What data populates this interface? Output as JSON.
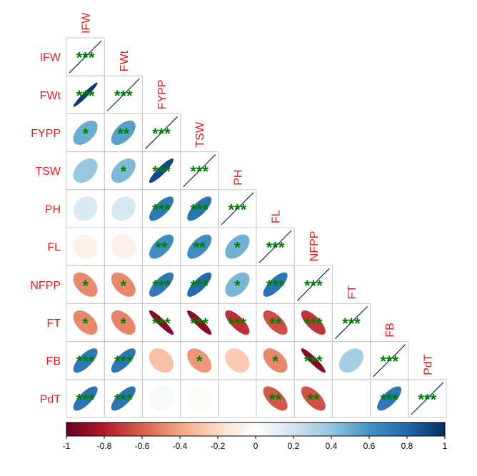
{
  "chart_data": {
    "type": "heatmap",
    "variables": [
      "IFW",
      "FWt",
      "FYPP",
      "TSW",
      "PH",
      "FL",
      "NFPP",
      "FT",
      "FB",
      "PdT"
    ],
    "cells": [
      {
        "row": "IFW",
        "col": "IFW",
        "value": 1.0,
        "sig": "***"
      },
      {
        "row": "FWt",
        "col": "IFW",
        "value": 0.96,
        "sig": "***"
      },
      {
        "row": "FWt",
        "col": "FWt",
        "value": 1.0,
        "sig": "***"
      },
      {
        "row": "FYPP",
        "col": "IFW",
        "value": 0.5,
        "sig": "*"
      },
      {
        "row": "FYPP",
        "col": "FWt",
        "value": 0.55,
        "sig": "**"
      },
      {
        "row": "FYPP",
        "col": "FYPP",
        "value": 1.0,
        "sig": "***"
      },
      {
        "row": "TSW",
        "col": "IFW",
        "value": 0.38,
        "sig": ""
      },
      {
        "row": "TSW",
        "col": "FWt",
        "value": 0.45,
        "sig": "*"
      },
      {
        "row": "TSW",
        "col": "FYPP",
        "value": 0.9,
        "sig": "***"
      },
      {
        "row": "TSW",
        "col": "TSW",
        "value": 1.0,
        "sig": "***"
      },
      {
        "row": "PH",
        "col": "IFW",
        "value": 0.16,
        "sig": ""
      },
      {
        "row": "PH",
        "col": "FWt",
        "value": 0.18,
        "sig": ""
      },
      {
        "row": "PH",
        "col": "FYPP",
        "value": 0.72,
        "sig": "***"
      },
      {
        "row": "PH",
        "col": "TSW",
        "value": 0.74,
        "sig": "***"
      },
      {
        "row": "PH",
        "col": "PH",
        "value": 1.0,
        "sig": "***"
      },
      {
        "row": "FL",
        "col": "IFW",
        "value": -0.08,
        "sig": ""
      },
      {
        "row": "FL",
        "col": "FWt",
        "value": -0.08,
        "sig": ""
      },
      {
        "row": "FL",
        "col": "FYPP",
        "value": 0.62,
        "sig": "**"
      },
      {
        "row": "FL",
        "col": "TSW",
        "value": 0.62,
        "sig": "**"
      },
      {
        "row": "FL",
        "col": "PH",
        "value": 0.48,
        "sig": "*"
      },
      {
        "row": "FL",
        "col": "FL",
        "value": 1.0,
        "sig": "***"
      },
      {
        "row": "NFPP",
        "col": "IFW",
        "value": -0.48,
        "sig": "*"
      },
      {
        "row": "NFPP",
        "col": "FWt",
        "value": -0.48,
        "sig": "*"
      },
      {
        "row": "NFPP",
        "col": "FYPP",
        "value": 0.72,
        "sig": "***"
      },
      {
        "row": "NFPP",
        "col": "TSW",
        "value": 0.78,
        "sig": "***"
      },
      {
        "row": "NFPP",
        "col": "PH",
        "value": 0.46,
        "sig": "*"
      },
      {
        "row": "NFPP",
        "col": "FL",
        "value": 0.74,
        "sig": "***"
      },
      {
        "row": "NFPP",
        "col": "NFPP",
        "value": 1.0,
        "sig": "***"
      },
      {
        "row": "FT",
        "col": "IFW",
        "value": -0.48,
        "sig": "*"
      },
      {
        "row": "FT",
        "col": "FWt",
        "value": -0.5,
        "sig": "*"
      },
      {
        "row": "FT",
        "col": "FYPP",
        "value": -0.92,
        "sig": "***"
      },
      {
        "row": "FT",
        "col": "TSW",
        "value": -0.9,
        "sig": "***"
      },
      {
        "row": "FT",
        "col": "PH",
        "value": -0.74,
        "sig": "***"
      },
      {
        "row": "FT",
        "col": "FL",
        "value": -0.65,
        "sig": "**"
      },
      {
        "row": "FT",
        "col": "NFPP",
        "value": -0.72,
        "sig": "***"
      },
      {
        "row": "FT",
        "col": "FT",
        "value": 1.0,
        "sig": "***"
      },
      {
        "row": "FB",
        "col": "IFW",
        "value": 0.72,
        "sig": "***"
      },
      {
        "row": "FB",
        "col": "FWt",
        "value": 0.73,
        "sig": "***"
      },
      {
        "row": "FB",
        "col": "FYPP",
        "value": -0.3,
        "sig": ""
      },
      {
        "row": "FB",
        "col": "TSW",
        "value": -0.44,
        "sig": "*"
      },
      {
        "row": "FB",
        "col": "PH",
        "value": -0.26,
        "sig": ""
      },
      {
        "row": "FB",
        "col": "FL",
        "value": -0.48,
        "sig": "*"
      },
      {
        "row": "FB",
        "col": "NFPP",
        "value": -0.92,
        "sig": "***"
      },
      {
        "row": "FB",
        "col": "FT",
        "value": 0.34,
        "sig": ""
      },
      {
        "row": "FB",
        "col": "FB",
        "value": 1.0,
        "sig": "***"
      },
      {
        "row": "PdT",
        "col": "IFW",
        "value": 0.74,
        "sig": "***"
      },
      {
        "row": "PdT",
        "col": "FWt",
        "value": 0.74,
        "sig": "***"
      },
      {
        "row": "PdT",
        "col": "FYPP",
        "value": 0.05,
        "sig": ""
      },
      {
        "row": "PdT",
        "col": "TSW",
        "value": -0.02,
        "sig": ""
      },
      {
        "row": "PdT",
        "col": "PH",
        "value": 0.0,
        "sig": ""
      },
      {
        "row": "PdT",
        "col": "FL",
        "value": -0.62,
        "sig": "**"
      },
      {
        "row": "PdT",
        "col": "NFPP",
        "value": -0.64,
        "sig": "**"
      },
      {
        "row": "PdT",
        "col": "FT",
        "value": 0.0,
        "sig": ""
      },
      {
        "row": "PdT",
        "col": "FB",
        "value": 0.72,
        "sig": "***"
      },
      {
        "row": "PdT",
        "col": "PdT",
        "value": 1.0,
        "sig": "***"
      }
    ],
    "colorbar": {
      "ticks": [
        "-1",
        "-0.8",
        "-0.6",
        "-0.4",
        "-0.2",
        "0",
        "0.2",
        "0.4",
        "0.6",
        "0.8",
        "1"
      ],
      "range": [
        -1,
        1
      ]
    },
    "colors": {
      "label": "#e31a1c",
      "sig": "#008000",
      "grid": "#c8c8c8",
      "palette": [
        "#67001F",
        "#B2182B",
        "#D6604D",
        "#F4A582",
        "#FDDBC7",
        "#FFFFFF",
        "#D1E5F0",
        "#92C5DE",
        "#4393C3",
        "#2166AC",
        "#053061"
      ]
    },
    "layout": "lower-triangle",
    "shape": "ellipse"
  }
}
